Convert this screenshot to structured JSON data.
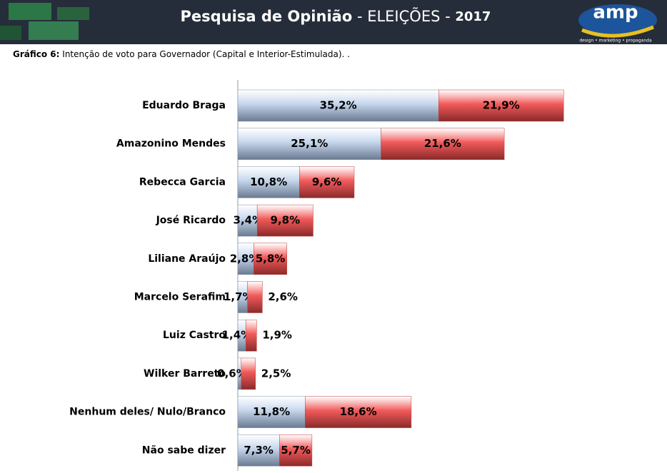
{
  "header": {
    "title": "Pesquisa de Opinião",
    "title_rest": "- ELEIÇÕES -",
    "year": "2017",
    "logo": "amp",
    "logo_tagline": "design • marketing • propaganda"
  },
  "chart_data": {
    "type": "bar",
    "orientation": "horizontal",
    "stacked": true,
    "title_prefix": "Gráfico 6:",
    "title": "Intenção de voto para Governador (Capital e Interior-Estimulada). .",
    "categories": [
      "Eduardo Braga",
      "Amazonino Mendes",
      "Rebecca Garcia",
      "José Ricardo",
      "Liliane Araújo",
      "Marcelo Serafim",
      "Luiz Castro",
      "Wilker Barreto",
      "Nenhum deles/ Nulo/Branco",
      "Não sabe dizer"
    ],
    "series": [
      {
        "color": "#c5d6ec",
        "values": [
          35.2,
          25.1,
          10.8,
          3.4,
          2.8,
          1.7,
          1.4,
          0.6,
          11.8,
          7.3
        ],
        "value_labels": [
          "35,2%",
          "25,1%",
          "10,8%",
          "3,4%",
          "2,8%",
          "1,7%",
          "1,4%",
          "0,6%",
          "11,8%",
          "7,3%"
        ]
      },
      {
        "color": "#f25a5a",
        "values": [
          21.9,
          21.6,
          9.6,
          9.8,
          5.8,
          2.6,
          1.9,
          2.5,
          18.6,
          5.7
        ],
        "value_labels": [
          "21,9%",
          "21,6%",
          "9,6%",
          "9,8%",
          "5,8%",
          "2,6%",
          "1,9%",
          "2,5%",
          "18,6%",
          "5,7%"
        ]
      }
    ]
  }
}
